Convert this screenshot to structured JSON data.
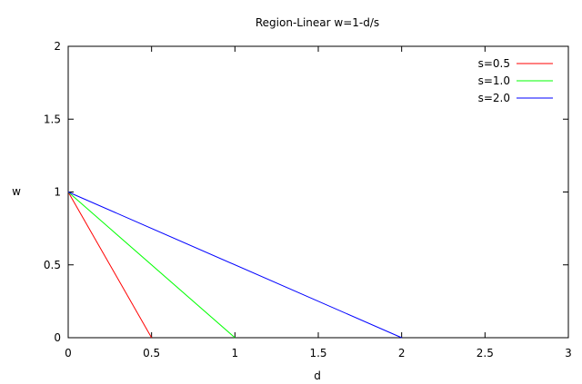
{
  "chart_data": {
    "type": "line",
    "title": "Region-Linear w=1-d/s",
    "xlabel": "d",
    "ylabel": "w",
    "xlim": [
      0,
      3
    ],
    "ylim": [
      0,
      2
    ],
    "xticks": [
      0,
      0.5,
      1,
      1.5,
      2,
      2.5,
      3
    ],
    "yticks": [
      0,
      0.5,
      1,
      1.5,
      2
    ],
    "xtick_labels": [
      "0",
      "0.5",
      "1",
      "1.5",
      "2",
      "2.5",
      "3"
    ],
    "ytick_labels": [
      "0",
      "0.5",
      "1",
      "1.5",
      "2"
    ],
    "grid": false,
    "legend_position": "top-right",
    "series": [
      {
        "name": "s=0.5",
        "color": "#ff0000",
        "x": [
          0,
          0.5
        ],
        "y": [
          1,
          0
        ]
      },
      {
        "name": "s=1.0",
        "color": "#00ff00",
        "x": [
          0,
          1
        ],
        "y": [
          1,
          0
        ]
      },
      {
        "name": "s=2.0",
        "color": "#0000ff",
        "x": [
          0,
          2
        ],
        "y": [
          1,
          0
        ]
      }
    ]
  }
}
